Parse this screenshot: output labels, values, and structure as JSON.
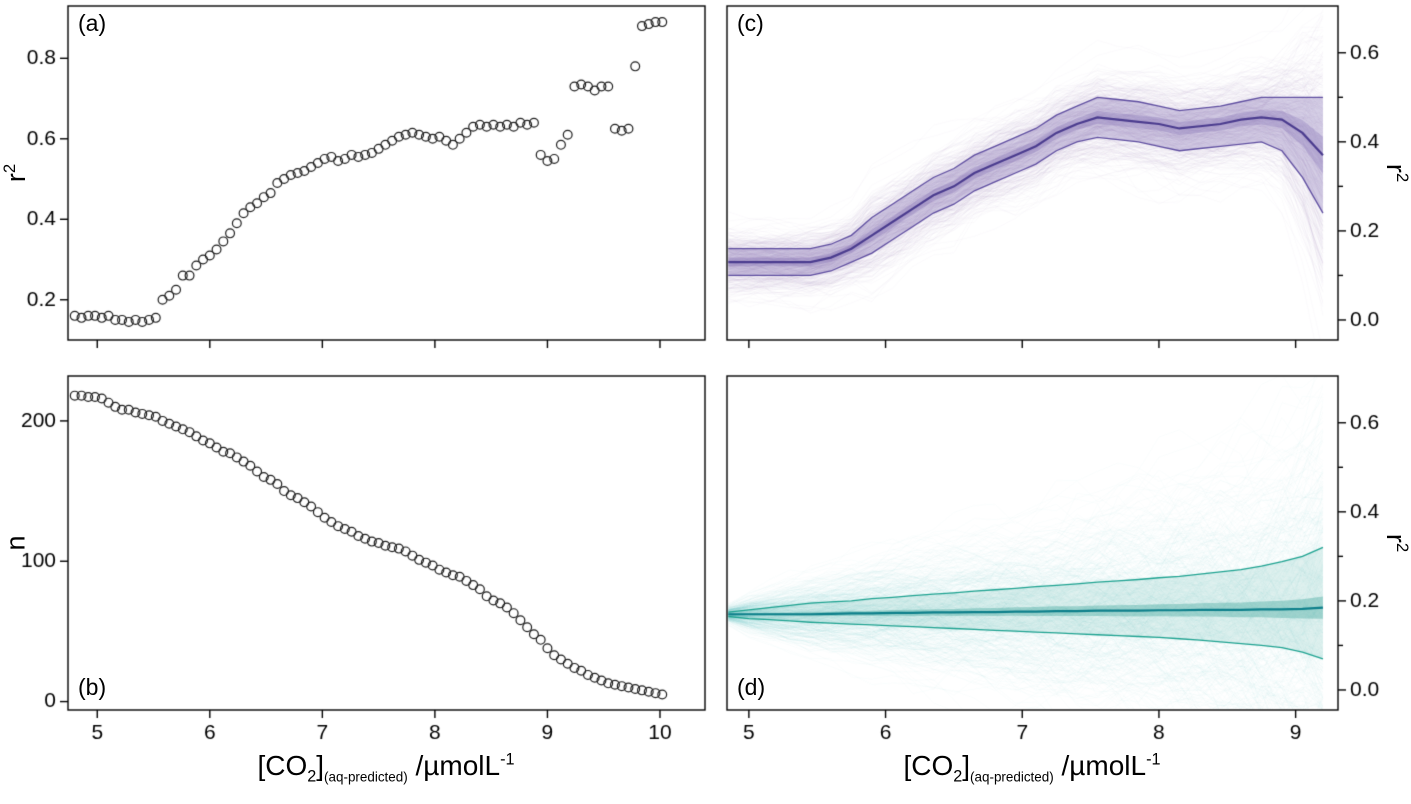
{
  "labels": {
    "panel_a": "(a)",
    "panel_b": "(b)",
    "panel_c": "(c)",
    "panel_d": "(d)",
    "r2_base": "r",
    "r2_sup": "2",
    "n_label": "n",
    "xlabel": {
      "p1": "[CO",
      "s1": "2",
      "p2": "]",
      "s2": "(aq-predicted)",
      "p3": " /µmolL",
      "sup": "-1"
    }
  },
  "colors": {
    "background": "#ffffff",
    "axis": "#000000",
    "scatter_stroke": "#1c1c1c",
    "purple_fan": "#8f80bd",
    "purple_band": "#7a67b0",
    "purple_median": "#4a3b8e",
    "purple_quantile": "#5d4c9f",
    "teal_fan": "#57b0a5",
    "teal_band": "#2f9e91",
    "teal_median": "#0c7f8a",
    "teal_quantile": "#1ba18f"
  },
  "chart_data": [
    {
      "id": "a",
      "type": "scatter",
      "panel_label": "(a)",
      "ylabel": "r^2",
      "xlabel": "[CO2](aq-predicted) /umolL-1",
      "y_side": "left",
      "show_xtick_labels": false,
      "xlim": [
        4.74,
        10.4
      ],
      "ylim": [
        0.1,
        0.93
      ],
      "xticks": [
        5,
        6,
        7,
        8,
        9,
        10
      ],
      "yticks": [
        0.2,
        0.4,
        0.6,
        0.8
      ],
      "ytick_labels": [
        "0.2",
        "0.4",
        "0.6",
        "0.8"
      ],
      "marker": "open-circle",
      "x": [
        4.8,
        4.86,
        4.92,
        4.98,
        5.04,
        5.1,
        5.16,
        5.22,
        5.28,
        5.34,
        5.4,
        5.46,
        5.52,
        5.58,
        5.64,
        5.7,
        5.76,
        5.82,
        5.88,
        5.94,
        6,
        6.06,
        6.12,
        6.18,
        6.24,
        6.3,
        6.36,
        6.42,
        6.48,
        6.54,
        6.6,
        6.66,
        6.72,
        6.78,
        6.84,
        6.9,
        6.96,
        7.02,
        7.08,
        7.14,
        7.2,
        7.26,
        7.32,
        7.38,
        7.44,
        7.5,
        7.56,
        7.62,
        7.68,
        7.74,
        7.8,
        7.86,
        7.92,
        7.98,
        8.04,
        8.1,
        8.16,
        8.22,
        8.28,
        8.34,
        8.4,
        8.46,
        8.52,
        8.58,
        8.64,
        8.7,
        8.76,
        8.82,
        8.88,
        8.94,
        9,
        9.06,
        9.12,
        9.18,
        9.24,
        9.3,
        9.36,
        9.42,
        9.48,
        9.54,
        9.6,
        9.66,
        9.72,
        9.78,
        9.84,
        9.9,
        9.96,
        10.02
      ],
      "y": [
        0.16,
        0.155,
        0.16,
        0.16,
        0.155,
        0.16,
        0.15,
        0.15,
        0.145,
        0.15,
        0.145,
        0.15,
        0.155,
        0.2,
        0.21,
        0.225,
        0.26,
        0.26,
        0.285,
        0.3,
        0.31,
        0.325,
        0.345,
        0.365,
        0.39,
        0.415,
        0.43,
        0.44,
        0.455,
        0.465,
        0.49,
        0.5,
        0.51,
        0.515,
        0.52,
        0.53,
        0.54,
        0.55,
        0.555,
        0.545,
        0.55,
        0.56,
        0.555,
        0.56,
        0.565,
        0.575,
        0.585,
        0.595,
        0.605,
        0.61,
        0.615,
        0.61,
        0.605,
        0.6,
        0.605,
        0.595,
        0.585,
        0.6,
        0.615,
        0.63,
        0.635,
        0.63,
        0.635,
        0.63,
        0.635,
        0.63,
        0.64,
        0.635,
        0.64,
        0.56,
        0.545,
        0.55,
        0.585,
        0.61,
        0.73,
        0.735,
        0.73,
        0.72,
        0.73,
        0.73,
        0.625,
        0.62,
        0.625,
        0.78,
        0.88,
        0.885,
        0.89,
        0.89
      ]
    },
    {
      "id": "b",
      "type": "scatter",
      "panel_label": "(b)",
      "ylabel": "n",
      "xlabel": "[CO2](aq-predicted) /umolL-1",
      "y_side": "left",
      "show_xtick_labels": true,
      "xlim": [
        4.74,
        10.4
      ],
      "ylim": [
        -6,
        232
      ],
      "xticks": [
        5,
        6,
        7,
        8,
        9,
        10
      ],
      "xtick_labels": [
        "5",
        "6",
        "7",
        "8",
        "9",
        "10"
      ],
      "yticks": [
        0,
        100,
        200
      ],
      "ytick_labels": [
        "0",
        "100",
        "200"
      ],
      "marker": "open-circle",
      "x": [
        4.8,
        4.86,
        4.92,
        4.98,
        5.04,
        5.1,
        5.16,
        5.22,
        5.28,
        5.34,
        5.4,
        5.46,
        5.52,
        5.58,
        5.64,
        5.7,
        5.76,
        5.82,
        5.88,
        5.94,
        6,
        6.06,
        6.12,
        6.18,
        6.24,
        6.3,
        6.36,
        6.42,
        6.48,
        6.54,
        6.6,
        6.66,
        6.72,
        6.78,
        6.84,
        6.9,
        6.96,
        7.02,
        7.08,
        7.14,
        7.2,
        7.26,
        7.32,
        7.38,
        7.44,
        7.5,
        7.56,
        7.62,
        7.68,
        7.74,
        7.8,
        7.86,
        7.92,
        7.98,
        8.04,
        8.1,
        8.16,
        8.22,
        8.28,
        8.34,
        8.4,
        8.46,
        8.52,
        8.58,
        8.64,
        8.7,
        8.76,
        8.82,
        8.88,
        8.94,
        9,
        9.06,
        9.12,
        9.18,
        9.24,
        9.3,
        9.36,
        9.42,
        9.48,
        9.54,
        9.6,
        9.66,
        9.72,
        9.78,
        9.84,
        9.9,
        9.96,
        10.02
      ],
      "y": [
        218,
        218,
        217,
        217,
        216,
        213,
        210,
        208,
        208,
        206,
        205,
        204,
        203,
        200,
        198,
        196,
        194,
        192,
        189,
        186,
        184,
        181,
        178,
        177,
        174,
        171,
        168,
        164,
        160,
        158,
        155,
        150,
        147,
        145,
        142,
        139,
        135,
        131,
        128,
        125,
        123,
        121,
        118,
        116,
        114,
        113,
        111,
        110,
        109,
        107,
        104,
        101,
        99,
        97,
        94,
        92,
        90,
        89,
        86,
        83,
        80,
        75,
        72,
        70,
        67,
        63,
        58,
        53,
        48,
        44,
        38,
        33,
        30,
        27,
        24,
        22,
        19,
        17,
        15,
        13,
        12,
        11,
        10,
        9,
        8,
        7,
        6,
        5
      ]
    },
    {
      "id": "c",
      "type": "line",
      "style": "ensemble",
      "panel_label": "(c)",
      "ylabel": "r^2",
      "xlabel": "[CO2](aq-predicted) /umolL-1",
      "y_side": "right",
      "show_xtick_labels": false,
      "xlim": [
        4.84,
        9.31
      ],
      "ylim": [
        -0.045,
        0.705
      ],
      "xticks": [
        5,
        6,
        7,
        8,
        9
      ],
      "yticks": [
        0,
        0.2,
        0.4,
        0.6
      ],
      "ytick_labels": [
        "0.0",
        "0.2",
        "0.4",
        "0.6"
      ],
      "yminor": [
        0.1,
        0.3,
        0.5
      ],
      "n_lines": 420,
      "seed": 11,
      "fan_spread": 0.62,
      "fan_alpha": 0.05,
      "band_alpha": 0.3,
      "inner_band_frac": 0.16,
      "inner_band_alpha": 0.3,
      "fan_color": "#8f80bd",
      "band_color": "#7a67b0",
      "median_color": "#4a3b8e",
      "quantile_color": "#5d4c9f",
      "x": [
        4.85,
        5,
        5.15,
        5.3,
        5.45,
        5.6,
        5.75,
        5.9,
        6.05,
        6.2,
        6.35,
        6.5,
        6.65,
        6.8,
        6.95,
        7.1,
        7.25,
        7.4,
        7.55,
        7.7,
        7.85,
        8,
        8.15,
        8.3,
        8.45,
        8.6,
        8.75,
        8.9,
        9.05,
        9.2
      ],
      "median": [
        0.13,
        0.13,
        0.13,
        0.13,
        0.13,
        0.14,
        0.16,
        0.19,
        0.22,
        0.25,
        0.28,
        0.3,
        0.33,
        0.35,
        0.37,
        0.39,
        0.42,
        0.44,
        0.455,
        0.45,
        0.445,
        0.44,
        0.43,
        0.435,
        0.44,
        0.45,
        0.455,
        0.45,
        0.42,
        0.37
      ],
      "upper": [
        0.16,
        0.16,
        0.16,
        0.16,
        0.16,
        0.17,
        0.19,
        0.23,
        0.26,
        0.29,
        0.32,
        0.34,
        0.37,
        0.39,
        0.41,
        0.43,
        0.46,
        0.48,
        0.5,
        0.495,
        0.49,
        0.48,
        0.47,
        0.475,
        0.48,
        0.49,
        0.5,
        0.5,
        0.5,
        0.5
      ],
      "lower": [
        0.1,
        0.1,
        0.1,
        0.1,
        0.1,
        0.11,
        0.13,
        0.15,
        0.18,
        0.21,
        0.24,
        0.26,
        0.29,
        0.31,
        0.33,
        0.35,
        0.38,
        0.4,
        0.41,
        0.405,
        0.4,
        0.39,
        0.38,
        0.385,
        0.39,
        0.395,
        0.4,
        0.38,
        0.32,
        0.24
      ]
    },
    {
      "id": "d",
      "type": "line",
      "style": "ensemble",
      "panel_label": "(d)",
      "ylabel": "r^2",
      "xlabel": "[CO2](aq-predicted) /umolL-1",
      "y_side": "right",
      "show_xtick_labels": true,
      "xlim": [
        4.84,
        9.31
      ],
      "ylim": [
        -0.045,
        0.705
      ],
      "xticks": [
        5,
        6,
        7,
        8,
        9
      ],
      "xtick_labels": [
        "5",
        "6",
        "7",
        "8",
        "9"
      ],
      "yticks": [
        0,
        0.2,
        0.4,
        0.6
      ],
      "ytick_labels": [
        "0.0",
        "0.2",
        "0.4",
        "0.6"
      ],
      "yminor": [
        0.1,
        0.3,
        0.5
      ],
      "n_lines": 420,
      "seed": 23,
      "fan_spread": 0.95,
      "fan_alpha": 0.04,
      "band_alpha": 0.15,
      "inner_band_frac": 0.1,
      "inner_band_alpha": 0.35,
      "fan_color": "#57b0a5",
      "band_color": "#2f9e91",
      "median_color": "#0c7f8a",
      "quantile_color": "#1ba18f",
      "x": [
        4.85,
        5,
        5.15,
        5.3,
        5.45,
        5.6,
        5.75,
        5.9,
        6.05,
        6.2,
        6.35,
        6.5,
        6.65,
        6.8,
        6.95,
        7.1,
        7.25,
        7.4,
        7.55,
        7.7,
        7.85,
        8,
        8.15,
        8.3,
        8.45,
        8.6,
        8.75,
        8.9,
        9.05,
        9.2
      ],
      "median": [
        0.17,
        0.17,
        0.17,
        0.17,
        0.17,
        0.171,
        0.172,
        0.172,
        0.173,
        0.173,
        0.174,
        0.174,
        0.175,
        0.175,
        0.176,
        0.176,
        0.177,
        0.177,
        0.178,
        0.178,
        0.178,
        0.179,
        0.179,
        0.18,
        0.18,
        0.18,
        0.181,
        0.181,
        0.182,
        0.185
      ],
      "upper": [
        0.175,
        0.18,
        0.185,
        0.19,
        0.195,
        0.198,
        0.2,
        0.205,
        0.208,
        0.212,
        0.215,
        0.218,
        0.222,
        0.225,
        0.228,
        0.232,
        0.235,
        0.238,
        0.242,
        0.245,
        0.248,
        0.252,
        0.255,
        0.26,
        0.265,
        0.27,
        0.278,
        0.288,
        0.3,
        0.32
      ],
      "lower": [
        0.165,
        0.16,
        0.158,
        0.155,
        0.152,
        0.15,
        0.148,
        0.146,
        0.144,
        0.142,
        0.14,
        0.138,
        0.136,
        0.134,
        0.132,
        0.13,
        0.128,
        0.126,
        0.124,
        0.122,
        0.12,
        0.118,
        0.115,
        0.112,
        0.108,
        0.104,
        0.1,
        0.095,
        0.085,
        0.07
      ]
    }
  ]
}
